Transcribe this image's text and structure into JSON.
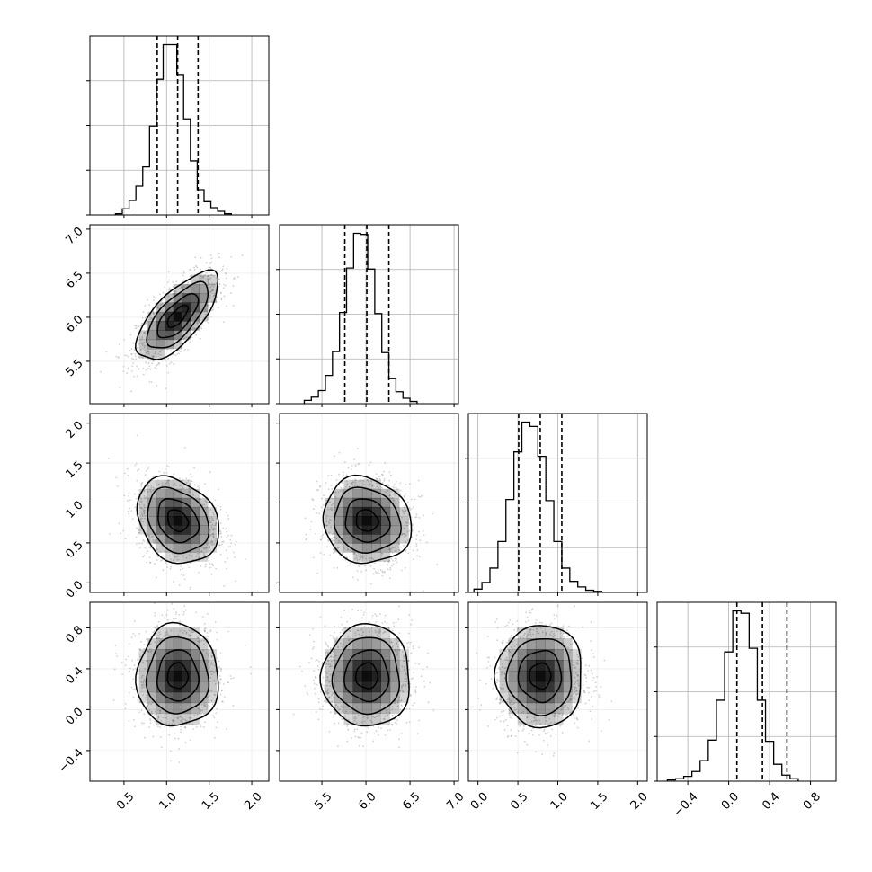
{
  "chart_data": {
    "type": "corner",
    "grid": true,
    "dims": [
      {
        "ticks": [
          0.5,
          1.0,
          1.5,
          2.0
        ],
        "tick_labels": [
          "0.5",
          "1.0",
          "1.5",
          "2.0"
        ],
        "lim": [
          0.1,
          2.2
        ]
      },
      {
        "ticks": [
          5.5,
          6.0,
          6.5,
          7.0
        ],
        "tick_labels": [
          "5.5",
          "6.0",
          "6.5",
          "7.0"
        ],
        "lim": [
          5.02,
          7.05
        ]
      },
      {
        "ticks": [
          0.0,
          0.5,
          1.0,
          1.5,
          2.0
        ],
        "tick_labels": [
          "0.0",
          "0.5",
          "1.0",
          "1.5",
          "2.0"
        ],
        "lim": [
          -0.12,
          2.12
        ]
      },
      {
        "ticks": [
          -0.4,
          0.0,
          0.4,
          0.8
        ],
        "tick_labels": [
          "−0.4",
          "0.0",
          "0.4",
          "0.8"
        ],
        "lim": [
          -0.7,
          1.05
        ]
      }
    ],
    "histograms": [
      {
        "edges_start": 0.4,
        "bin_width": 0.08,
        "counts": [
          1,
          5,
          12,
          24,
          40,
          74,
          113,
          142,
          142,
          117,
          80,
          45,
          21,
          11,
          6,
          3,
          1
        ],
        "quantiles": [
          0.89,
          1.13,
          1.37
        ]
      },
      {
        "edges_start": 5.3,
        "bin_width": 0.08,
        "counts": [
          3,
          6,
          12,
          26,
          48,
          84,
          125,
          157,
          156,
          124,
          83,
          47,
          23,
          11,
          5,
          2
        ],
        "quantiles": [
          5.76,
          6.01,
          6.26
        ]
      },
      {
        "edges_start": -0.05,
        "bin_width": 0.1,
        "counts": [
          3,
          9,
          22,
          46,
          84,
          127,
          154,
          150,
          123,
          83,
          46,
          22,
          10,
          5,
          2,
          1
        ],
        "quantiles": [
          0.51,
          0.78,
          1.05
        ]
      },
      {
        "edges_start": -0.6,
        "bin_width": 0.08,
        "counts": [
          1,
          2,
          4,
          8,
          17,
          34,
          67,
          107,
          141,
          139,
          110,
          67,
          33,
          14,
          5,
          2
        ],
        "quantiles": [
          0.08,
          0.33,
          0.57
        ]
      }
    ],
    "pairs": [
      {
        "row": 1,
        "col": 0,
        "center": [
          1.13,
          6.01
        ],
        "sd": [
          0.24,
          0.25
        ],
        "corr": 0.7
      },
      {
        "row": 2,
        "col": 0,
        "center": [
          1.13,
          0.78
        ],
        "sd": [
          0.24,
          0.27
        ],
        "corr": -0.25
      },
      {
        "row": 2,
        "col": 1,
        "center": [
          6.01,
          0.78
        ],
        "sd": [
          0.25,
          0.27
        ],
        "corr": -0.1
      },
      {
        "row": 3,
        "col": 0,
        "center": [
          1.13,
          0.33
        ],
        "sd": [
          0.24,
          0.25
        ],
        "corr": 0.0
      },
      {
        "row": 3,
        "col": 1,
        "center": [
          6.01,
          0.33
        ],
        "sd": [
          0.25,
          0.25
        ],
        "corr": 0.0
      },
      {
        "row": 3,
        "col": 2,
        "center": [
          0.78,
          0.33
        ],
        "sd": [
          0.27,
          0.25
        ],
        "corr": 0.0
      }
    ],
    "contour_sigma_levels": [
      0.5,
      1.0,
      1.5,
      2.0
    ],
    "colors": {
      "line": "#000000",
      "grid": "#b0b0b0",
      "scatter": "#999999",
      "density": "#000000"
    }
  }
}
